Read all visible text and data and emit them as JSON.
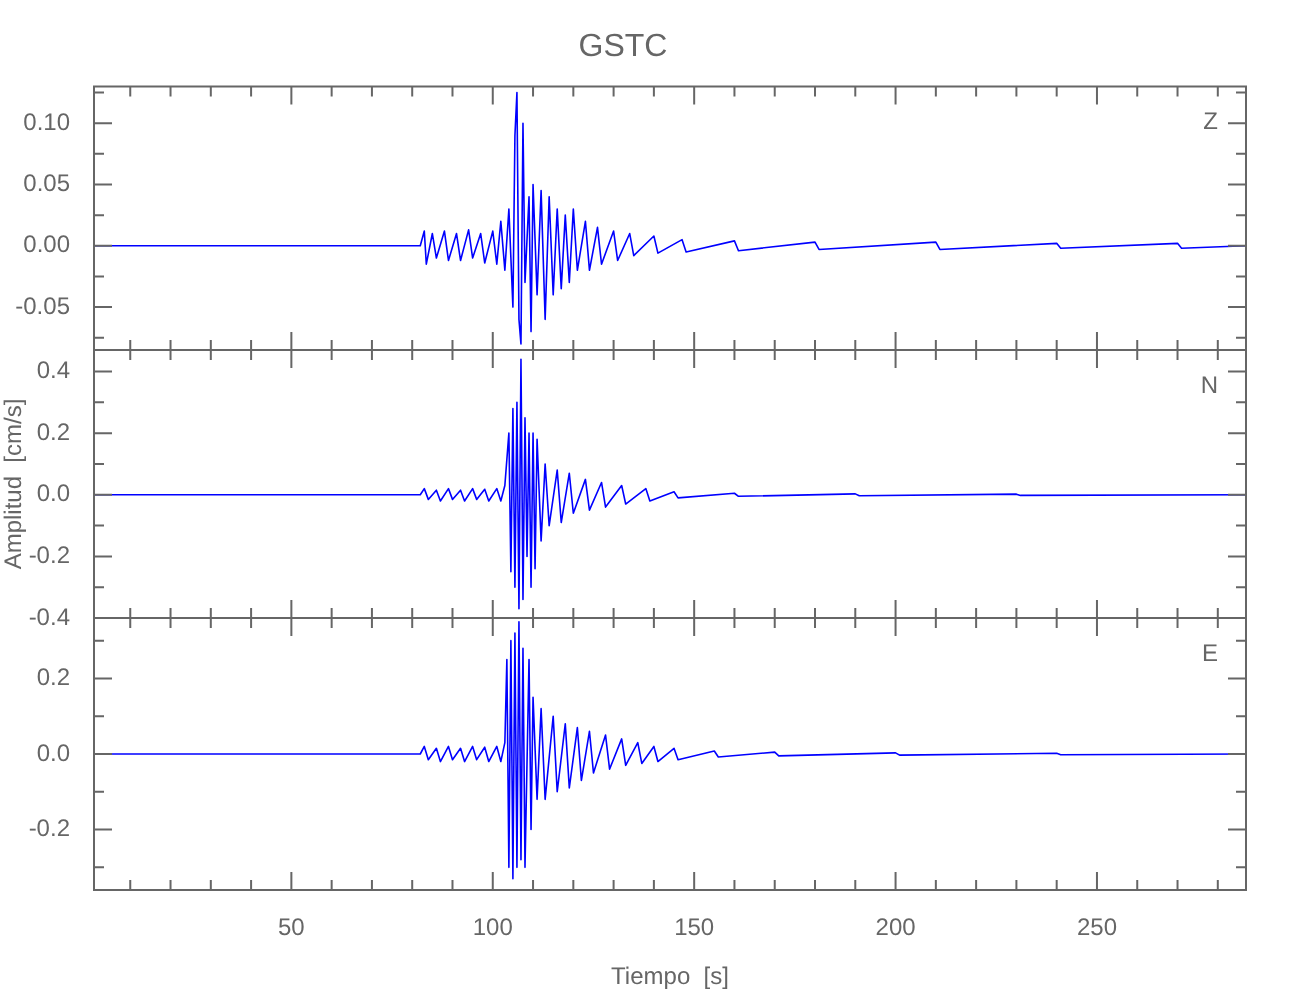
{
  "chart_data": [
    {
      "type": "line",
      "title": "GSTC",
      "annotations": [
        "Z"
      ],
      "tick_labels": "y",
      "xlim": [
        1,
        287
      ],
      "xticks": [
        {
          "value": 10,
          "label": null
        },
        {
          "value": 20,
          "label": null
        },
        {
          "value": 30,
          "label": null
        },
        {
          "value": 40,
          "label": null
        },
        50,
        {
          "value": 60,
          "label": null
        },
        {
          "value": 70,
          "label": null
        },
        {
          "value": 80,
          "label": null
        },
        {
          "value": 90,
          "label": null
        },
        100,
        {
          "value": 110,
          "label": null
        },
        {
          "value": 120,
          "label": null
        },
        {
          "value": 130,
          "label": null
        },
        {
          "value": 140,
          "label": null
        },
        150,
        {
          "value": 160,
          "label": null
        },
        {
          "value": 170,
          "label": null
        },
        {
          "value": 180,
          "label": null
        },
        {
          "value": 190,
          "label": null
        },
        200,
        {
          "value": 210,
          "label": null
        },
        {
          "value": 220,
          "label": null
        },
        {
          "value": 230,
          "label": null
        },
        {
          "value": 240,
          "label": null
        },
        250,
        {
          "value": 260,
          "label": null
        },
        {
          "value": 270,
          "label": null
        },
        {
          "value": 280,
          "label": null
        }
      ],
      "ylim": [
        -0.085,
        0.13
      ],
      "yticks": [
        {
          "value": -0.075,
          "label": null
        },
        {
          "value": -0.05,
          "label": "-0.05"
        },
        {
          "value": -0.025,
          "label": null
        },
        {
          "value": 0,
          "label": "0.00"
        },
        {
          "value": 0.025,
          "label": null
        },
        {
          "value": 0.05,
          "label": "0.05"
        },
        {
          "value": 0.075,
          "label": null
        },
        {
          "value": 0.1,
          "label": "0.10"
        },
        {
          "value": 0.125,
          "label": null
        }
      ],
      "series": [
        {
          "color": "#0000ff",
          "x": [
            1,
            40,
            82,
            83,
            83.5,
            85,
            86,
            88,
            89,
            91,
            92,
            94,
            95,
            97,
            98,
            100,
            101,
            102,
            103,
            104,
            105,
            105.5,
            106,
            106.5,
            107,
            107.5,
            108,
            109,
            109.5,
            110,
            111,
            112,
            113,
            114,
            115,
            116,
            117,
            118,
            119,
            120,
            121,
            123,
            124,
            126,
            127,
            130,
            131,
            134,
            135,
            140,
            141,
            147,
            148,
            160,
            161,
            180,
            181,
            210,
            211,
            240,
            241,
            270,
            271,
            287
          ],
          "values": [
            0,
            0,
            0,
            0.012,
            -0.015,
            0.01,
            -0.01,
            0.012,
            -0.012,
            0.01,
            -0.012,
            0.013,
            -0.01,
            0.01,
            -0.014,
            0.012,
            -0.015,
            0.02,
            -0.02,
            0.03,
            -0.05,
            0.09,
            0.125,
            -0.06,
            -0.08,
            0.1,
            -0.03,
            0.04,
            -0.07,
            0.05,
            -0.04,
            0.045,
            -0.06,
            0.04,
            -0.04,
            0.03,
            -0.035,
            0.025,
            -0.03,
            0.03,
            -0.02,
            0.02,
            -0.02,
            0.015,
            -0.015,
            0.012,
            -0.012,
            0.01,
            -0.008,
            0.008,
            -0.006,
            0.005,
            -0.005,
            0.004,
            -0.004,
            0.003,
            -0.003,
            0.003,
            -0.003,
            0.002,
            -0.002,
            0.002,
            -0.002,
            0
          ]
        }
      ]
    },
    {
      "type": "line",
      "ylabel": "Amplitud  [cm/s]",
      "annotations": [
        "N"
      ],
      "tick_labels": "y",
      "xlim": [
        1,
        287
      ],
      "xticks": [
        {
          "value": 10,
          "label": null
        },
        {
          "value": 20,
          "label": null
        },
        {
          "value": 30,
          "label": null
        },
        {
          "value": 40,
          "label": null
        },
        50,
        {
          "value": 60,
          "label": null
        },
        {
          "value": 70,
          "label": null
        },
        {
          "value": 80,
          "label": null
        },
        {
          "value": 90,
          "label": null
        },
        100,
        {
          "value": 110,
          "label": null
        },
        {
          "value": 120,
          "label": null
        },
        {
          "value": 130,
          "label": null
        },
        {
          "value": 140,
          "label": null
        },
        150,
        {
          "value": 160,
          "label": null
        },
        {
          "value": 170,
          "label": null
        },
        {
          "value": 180,
          "label": null
        },
        {
          "value": 190,
          "label": null
        },
        200,
        {
          "value": 210,
          "label": null
        },
        {
          "value": 220,
          "label": null
        },
        {
          "value": 230,
          "label": null
        },
        {
          "value": 240,
          "label": null
        },
        250,
        {
          "value": 260,
          "label": null
        },
        {
          "value": 270,
          "label": null
        },
        {
          "value": 280,
          "label": null
        }
      ],
      "ylim": [
        -0.4,
        0.47
      ],
      "yticks": [
        {
          "value": -0.4,
          "label": "-0.4"
        },
        {
          "value": -0.3,
          "label": null
        },
        {
          "value": -0.2,
          "label": "-0.2"
        },
        {
          "value": -0.1,
          "label": null
        },
        {
          "value": 0,
          "label": "0.0"
        },
        {
          "value": 0.1,
          "label": null
        },
        {
          "value": 0.2,
          "label": "0.2"
        },
        {
          "value": 0.3,
          "label": null
        },
        {
          "value": 0.4,
          "label": "0.4"
        }
      ],
      "series": [
        {
          "color": "#0000ff",
          "x": [
            1,
            40,
            82,
            83,
            84,
            86,
            87,
            89,
            90,
            92,
            93,
            95,
            96,
            98,
            99,
            101,
            102,
            103,
            104,
            104.5,
            105,
            105.5,
            106,
            106.5,
            107,
            107.5,
            108,
            108.5,
            109,
            109.5,
            110,
            110.5,
            111,
            112,
            113,
            114,
            116,
            117,
            119,
            120,
            123,
            124,
            127,
            128,
            132,
            133,
            138,
            139,
            145,
            146,
            160,
            161,
            190,
            191,
            230,
            231,
            287
          ],
          "values": [
            0,
            0,
            0,
            0.02,
            -0.015,
            0.015,
            -0.02,
            0.02,
            -0.015,
            0.015,
            -0.02,
            0.02,
            -0.015,
            0.018,
            -0.02,
            0.02,
            -0.02,
            0.03,
            0.2,
            -0.25,
            0.28,
            -0.3,
            0.3,
            -0.37,
            0.44,
            -0.34,
            0.25,
            -0.2,
            0.2,
            -0.3,
            0.2,
            -0.24,
            0.18,
            -0.15,
            0.1,
            -0.1,
            0.08,
            -0.09,
            0.07,
            -0.06,
            0.05,
            -0.05,
            0.04,
            -0.04,
            0.03,
            -0.03,
            0.02,
            -0.02,
            0.01,
            -0.01,
            0.005,
            -0.005,
            0.003,
            -0.003,
            0.002,
            -0.002,
            0
          ]
        }
      ]
    },
    {
      "type": "line",
      "xlabel": "Tiempo  [s]",
      "annotations": [
        "E"
      ],
      "xlim": [
        1,
        287
      ],
      "xticks": [
        {
          "value": 10,
          "label": null
        },
        {
          "value": 20,
          "label": null
        },
        {
          "value": 30,
          "label": null
        },
        {
          "value": 40,
          "label": null
        },
        50,
        {
          "value": 60,
          "label": null
        },
        {
          "value": 70,
          "label": null
        },
        {
          "value": 80,
          "label": null
        },
        {
          "value": 90,
          "label": null
        },
        100,
        {
          "value": 110,
          "label": null
        },
        {
          "value": 120,
          "label": null
        },
        {
          "value": 130,
          "label": null
        },
        {
          "value": 140,
          "label": null
        },
        150,
        {
          "value": 160,
          "label": null
        },
        {
          "value": 170,
          "label": null
        },
        {
          "value": 180,
          "label": null
        },
        {
          "value": 190,
          "label": null
        },
        200,
        {
          "value": 210,
          "label": null
        },
        {
          "value": 220,
          "label": null
        },
        {
          "value": 230,
          "label": null
        },
        {
          "value": 240,
          "label": null
        },
        250,
        {
          "value": 260,
          "label": null
        },
        {
          "value": 270,
          "label": null
        },
        {
          "value": 280,
          "label": null
        }
      ],
      "ylim": [
        -0.36,
        0.36
      ],
      "yticks": [
        {
          "value": -0.3,
          "label": null
        },
        {
          "value": -0.2,
          "label": "-0.2"
        },
        {
          "value": -0.1,
          "label": null
        },
        {
          "value": 0,
          "label": "0.0"
        },
        {
          "value": 0.1,
          "label": null
        },
        {
          "value": 0.2,
          "label": "0.2"
        },
        {
          "value": 0.3,
          "label": null
        }
      ],
      "series": [
        {
          "color": "#0000ff",
          "x": [
            1,
            40,
            82,
            83,
            84,
            86,
            87,
            89,
            90,
            92,
            93,
            95,
            96,
            98,
            99,
            101,
            102,
            103,
            103.5,
            104,
            104.5,
            105,
            105.5,
            106,
            106.5,
            107,
            107.5,
            108,
            109,
            109.5,
            110,
            111,
            112,
            113,
            115,
            116,
            118,
            119,
            121,
            122,
            124,
            125,
            128,
            129,
            132,
            133,
            136,
            137,
            140,
            141,
            145,
            146,
            155,
            156,
            170,
            171,
            200,
            201,
            240,
            241,
            287
          ],
          "values": [
            0,
            0,
            0,
            0.02,
            -0.015,
            0.015,
            -0.02,
            0.02,
            -0.015,
            0.015,
            -0.02,
            0.02,
            -0.015,
            0.018,
            -0.02,
            0.02,
            -0.02,
            0.03,
            0.25,
            -0.3,
            0.3,
            -0.33,
            0.32,
            -0.3,
            0.35,
            -0.28,
            0.28,
            -0.3,
            0.25,
            -0.2,
            0.15,
            -0.12,
            0.12,
            -0.12,
            0.1,
            -0.1,
            0.08,
            -0.09,
            0.07,
            -0.07,
            0.06,
            -0.05,
            0.05,
            -0.04,
            0.04,
            -0.03,
            0.03,
            -0.025,
            0.02,
            -0.02,
            0.015,
            -0.015,
            0.008,
            -0.008,
            0.005,
            -0.005,
            0.003,
            -0.003,
            0.002,
            -0.002,
            0
          ]
        }
      ]
    }
  ]
}
